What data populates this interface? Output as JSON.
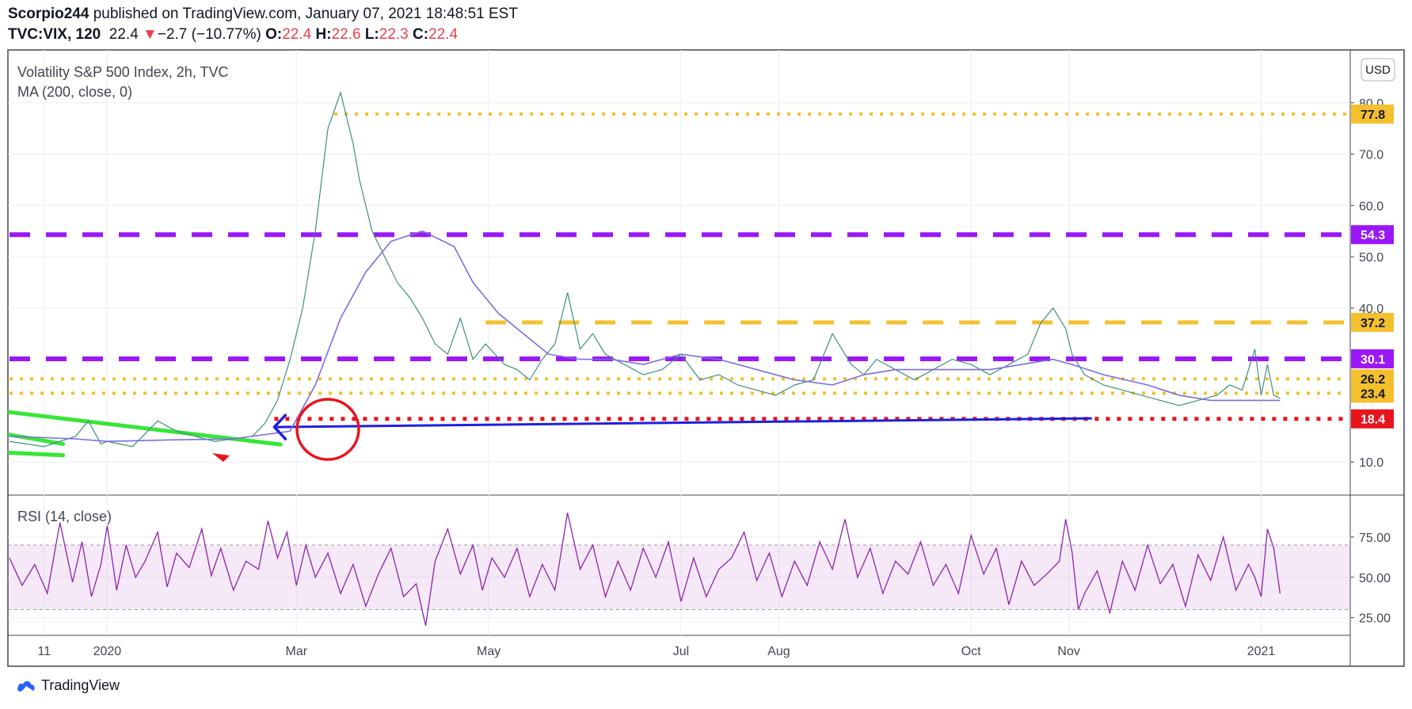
{
  "header": {
    "author": "Scorpio244",
    "published_text": "published on TradingView.com, January 07, 2021 18:48:51 EST",
    "symbol": "TVC:VIX, 120",
    "last": "22.4",
    "change": "−2.7 (−10.77%)",
    "o_label": "O:",
    "o_value": "22.4",
    "h_label": "H:",
    "h_value": "22.6",
    "l_label": "L:",
    "l_value": "22.3",
    "c_label": "C:",
    "c_value": "22.4"
  },
  "legend": {
    "title": "Volatility S&P 500 Index, 2h, TVC",
    "ma": "MA (200, close, 0)",
    "rsi": "RSI (14, close)"
  },
  "currency_button": "USD",
  "footer": {
    "brand": "TradingView"
  },
  "colors": {
    "purple": "#9b17f7",
    "gold": "#f5c02e",
    "red": "#e8141c",
    "green": "#37e637",
    "blue": "#1f1fe0",
    "ma": "#7b6ce0",
    "rsi": "#8e24aa",
    "candle_up": "#26a69a",
    "candle_down": "#ef5350"
  },
  "chart_data": [
    {
      "type": "line",
      "name_text": "Volatility S&P 500 Index, 2h, TVC",
      "y_axis": {
        "ticks": [
          "80.0",
          "70.0",
          "60.0",
          "50.0",
          "40.0",
          "10.0"
        ],
        "tick_values": [
          80,
          70,
          60,
          50,
          40,
          10
        ],
        "range": [
          4,
          90
        ],
        "currency": "USD"
      },
      "x_axis": {
        "ticks": [
          "11",
          "2020",
          "Mar",
          "May",
          "Jul",
          "Aug",
          "Oct",
          "Nov",
          "2021"
        ],
        "tick_days": [
          -20,
          0,
          60,
          121,
          182,
          213,
          274,
          305,
          366
        ]
      },
      "price_labels": [
        {
          "text": "77.8",
          "value": 77.8,
          "style": "gold-dotted"
        },
        {
          "text": "54.3",
          "value": 54.3,
          "style": "purple-dashed"
        },
        {
          "text": "37.2",
          "value": 37.2,
          "style": "gold-dashed"
        },
        {
          "text": "30.1",
          "value": 30.1,
          "style": "purple-dashed"
        },
        {
          "text": "26.2",
          "value": 26.2,
          "style": "gold-dotted"
        },
        {
          "text": "23.4",
          "value": 23.4,
          "style": "gold-dotted"
        },
        {
          "text": "18.4",
          "value": 18.4,
          "style": "red-dotted"
        }
      ],
      "series": [
        {
          "name": "VIX",
          "x": [
            -31,
            -20,
            -10,
            -6,
            -2,
            0,
            8,
            16,
            22,
            28,
            34,
            40,
            46,
            50,
            54,
            58,
            62,
            66,
            70,
            74,
            78,
            80,
            84,
            88,
            92,
            96,
            100,
            104,
            108,
            112,
            116,
            120,
            126,
            130,
            134,
            138,
            142,
            146,
            150,
            154,
            158,
            164,
            170,
            176,
            182,
            188,
            194,
            200,
            206,
            212,
            218,
            224,
            230,
            236,
            240,
            244,
            250,
            256,
            262,
            268,
            274,
            280,
            286,
            292,
            296,
            300,
            304,
            306,
            310,
            316,
            322,
            328,
            334,
            340,
            346,
            352,
            356,
            360,
            364,
            366,
            368,
            370,
            372
          ],
          "y": [
            14,
            13,
            15,
            18,
            13.5,
            14,
            13,
            18,
            16,
            15,
            14,
            14.5,
            15,
            17.5,
            22,
            30,
            40,
            55,
            75,
            82,
            72,
            65,
            55,
            50,
            45,
            42,
            38,
            33,
            31,
            38,
            30,
            33,
            29,
            28,
            26,
            30,
            33,
            43,
            32,
            35,
            31,
            29,
            27,
            28,
            31,
            26,
            27,
            25,
            24,
            23,
            25,
            26,
            35,
            29,
            27,
            30,
            28,
            26,
            28,
            30,
            29,
            27,
            29,
            31,
            37,
            40,
            36,
            31,
            27,
            25,
            24,
            23,
            22,
            21,
            22,
            23,
            25,
            24,
            32,
            23,
            29,
            23,
            22.4
          ]
        },
        {
          "name": "MA (200, close, 0)",
          "x": [
            -31,
            -10,
            0,
            20,
            40,
            58,
            66,
            74,
            82,
            90,
            100,
            110,
            116,
            124,
            132,
            140,
            150,
            160,
            170,
            182,
            194,
            206,
            218,
            230,
            240,
            250,
            260,
            270,
            280,
            290,
            300,
            306,
            316,
            330,
            340,
            350,
            360,
            372
          ],
          "y": [
            15,
            14.5,
            14,
            14.3,
            14.5,
            16,
            25,
            38,
            47,
            53,
            55,
            52,
            45,
            39,
            35,
            31,
            30,
            30,
            29,
            31,
            30,
            28,
            26,
            25,
            27,
            28,
            28,
            28,
            28,
            29,
            30,
            29,
            27,
            25,
            23,
            22,
            22,
            22
          ]
        }
      ],
      "lines": [
        {
          "style": "purple-dashed",
          "value": 54.3,
          "x": [
            -31,
            393
          ]
        },
        {
          "style": "purple-dashed",
          "value": 30.1,
          "x": [
            -31,
            393
          ]
        },
        {
          "style": "gold-dashed",
          "value": 37.2,
          "x": [
            120,
            393
          ]
        },
        {
          "style": "gold-dotted",
          "value": 77.8,
          "x": [
            72,
            393
          ]
        },
        {
          "style": "gold-dotted",
          "value": 26.2,
          "x": [
            -31,
            393
          ]
        },
        {
          "style": "gold-dotted",
          "value": 23.4,
          "x": [
            -31,
            393
          ]
        },
        {
          "style": "red-dotted",
          "value": 18.4,
          "x": [
            53,
            393
          ]
        },
        {
          "style": "green-solid",
          "points": [
            [
              -31,
              19.7
            ],
            [
              55,
              13.4
            ]
          ]
        },
        {
          "style": "green-solid",
          "points": [
            [
              -31,
              15.3
            ],
            [
              -14,
              13.5
            ]
          ]
        },
        {
          "style": "green-solid",
          "points": [
            [
              -31,
              11.8
            ],
            [
              -14,
              11.3
            ]
          ]
        },
        {
          "style": "blue-arrow",
          "points": [
            [
              312,
              18.5
            ],
            [
              53,
              16.8
            ]
          ]
        }
      ]
    },
    {
      "type": "line",
      "name_text": "RSI (14, close)",
      "y_axis": {
        "ticks": [
          "75.00",
          "50.00",
          "25.00"
        ],
        "tick_values": [
          75,
          50,
          25
        ],
        "range": [
          15,
          100
        ],
        "band": [
          30,
          70
        ]
      },
      "series": [
        {
          "name": "RSI",
          "x": [
            -31,
            -27,
            -23,
            -19,
            -15,
            -11,
            -8,
            -5,
            -2,
            0,
            3,
            6,
            9,
            12,
            16,
            19,
            22,
            26,
            30,
            33,
            36,
            40,
            44,
            48,
            51,
            54,
            57,
            60,
            63,
            66,
            70,
            74,
            78,
            82,
            86,
            90,
            94,
            98,
            101,
            104,
            108,
            112,
            116,
            119,
            122,
            126,
            130,
            134,
            138,
            142,
            146,
            150,
            154,
            158,
            162,
            166,
            170,
            174,
            178,
            182,
            186,
            190,
            194,
            198,
            202,
            206,
            210,
            214,
            218,
            222,
            226,
            230,
            234,
            238,
            242,
            246,
            250,
            254,
            258,
            262,
            266,
            270,
            274,
            278,
            282,
            286,
            290,
            294,
            298,
            302,
            304,
            306,
            308,
            310,
            314,
            318,
            322,
            326,
            330,
            334,
            338,
            342,
            346,
            350,
            354,
            358,
            362,
            364,
            366,
            368,
            370,
            372
          ],
          "y": [
            62,
            45,
            58,
            40,
            84,
            47,
            72,
            38,
            58,
            82,
            42,
            70,
            50,
            60,
            78,
            44,
            65,
            56,
            80,
            51,
            68,
            42,
            60,
            55,
            85,
            62,
            78,
            45,
            70,
            50,
            65,
            40,
            58,
            32,
            52,
            68,
            38,
            46,
            20,
            60,
            80,
            52,
            70,
            42,
            62,
            50,
            68,
            38,
            58,
            42,
            90,
            55,
            70,
            38,
            60,
            42,
            68,
            50,
            72,
            35,
            62,
            38,
            55,
            62,
            78,
            48,
            65,
            38,
            60,
            45,
            72,
            55,
            86,
            50,
            68,
            40,
            60,
            52,
            72,
            45,
            58,
            40,
            76,
            52,
            68,
            33,
            60,
            45,
            52,
            60,
            86,
            66,
            30,
            40,
            54,
            28,
            60,
            42,
            70,
            46,
            58,
            32,
            64,
            48,
            75,
            42,
            58,
            50,
            38,
            80,
            68,
            40
          ]
        }
      ]
    }
  ]
}
